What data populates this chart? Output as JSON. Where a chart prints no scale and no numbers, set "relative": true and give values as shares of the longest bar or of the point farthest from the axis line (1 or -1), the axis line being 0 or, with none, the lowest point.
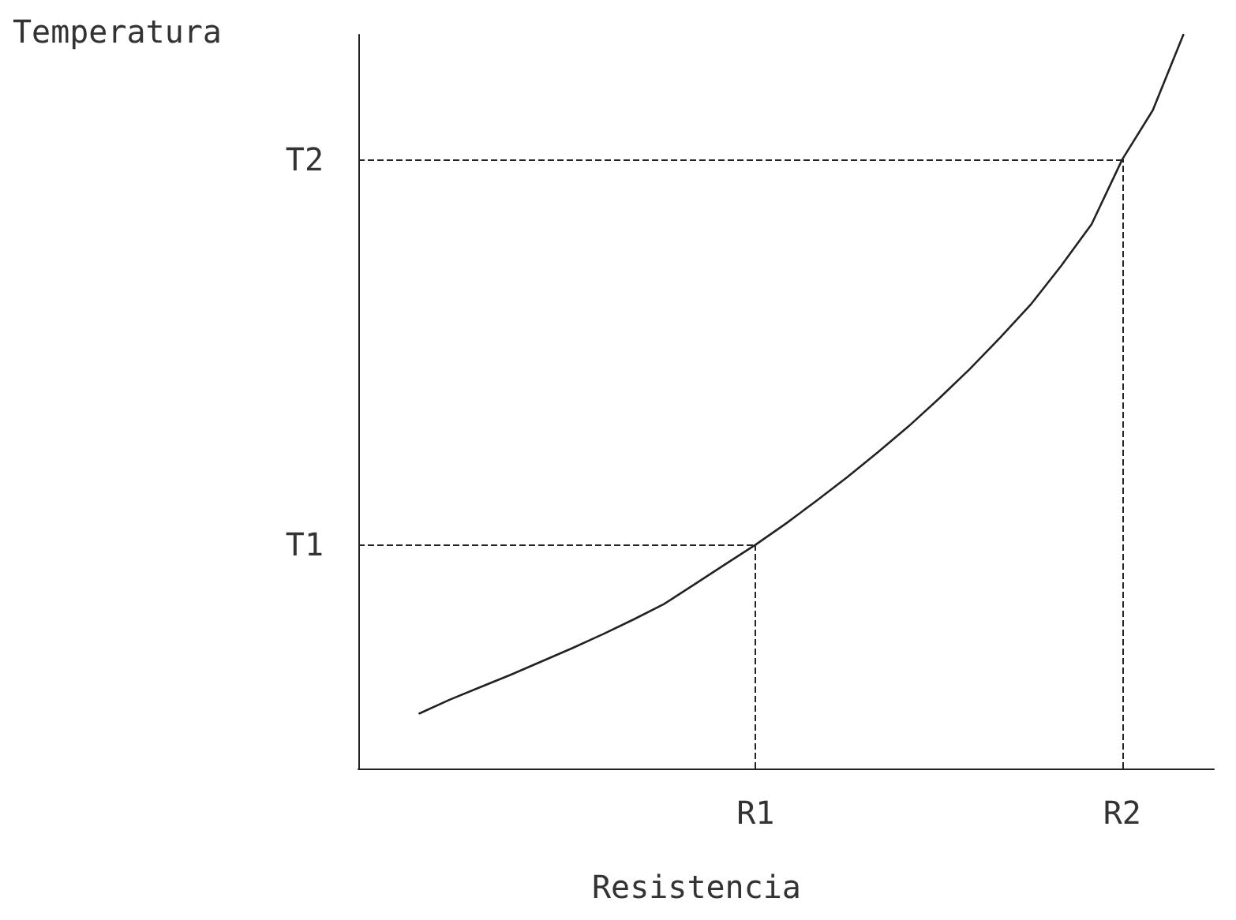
{
  "chart_data": {
    "type": "line",
    "relative": true,
    "xlabel": "Resistencia",
    "ylabel": "Temperatura",
    "categories": [
      null,
      null,
      null,
      null,
      null,
      null,
      null,
      null,
      null,
      null,
      null,
      null,
      null,
      "R1",
      null,
      null,
      null,
      null,
      null,
      null,
      null,
      null,
      null,
      null,
      null,
      "R2",
      null,
      null,
      null
    ],
    "series": [
      {
        "color": "#222222",
        "values": [
          null,
          null,
          0.075,
          0.094,
          0.111,
          0.128,
          0.146,
          0.164,
          0.183,
          0.203,
          0.224,
          0.251,
          0.278,
          0.305,
          0.334,
          0.365,
          0.397,
          0.431,
          0.466,
          0.504,
          0.544,
          0.587,
          0.632,
          0.685,
          0.742,
          0.83,
          0.897,
          1.0,
          null
        ]
      }
    ],
    "ref_lines": [
      {
        "axis": "y",
        "value": 0.305,
        "label": "T1",
        "line_style": "dashed"
      },
      {
        "axis": "y",
        "value": 0.83,
        "label": "T2",
        "line_style": "dashed"
      },
      {
        "axis": "x",
        "value": "R1",
        "line_style": "dashed"
      },
      {
        "axis": "x",
        "value": "R2",
        "line_style": "dashed"
      }
    ],
    "grid": false,
    "marker": "none",
    "line_style": "solid"
  }
}
